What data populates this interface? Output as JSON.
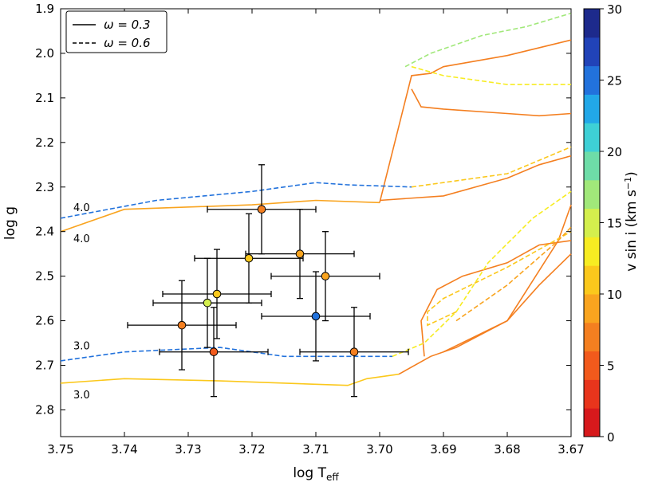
{
  "chart_data": {
    "type": "scatter",
    "xlabel": "log T",
    "xlabel_sub": "eff",
    "ylabel": "log g",
    "xlim": [
      3.75,
      3.67
    ],
    "ylim": [
      1.9,
      2.86
    ],
    "x_ticks": [
      "3.75",
      "3.74",
      "3.73",
      "3.72",
      "3.71",
      "3.70",
      "3.69",
      "3.68",
      "3.67"
    ],
    "x_tick_values": [
      3.75,
      3.74,
      3.73,
      3.72,
      3.71,
      3.7,
      3.69,
      3.68,
      3.67
    ],
    "y_ticks": [
      "1.9",
      "2.0",
      "2.1",
      "2.2",
      "2.3",
      "2.4",
      "2.5",
      "2.6",
      "2.7",
      "2.8"
    ],
    "y_tick_values": [
      1.9,
      2.0,
      2.1,
      2.2,
      2.3,
      2.4,
      2.5,
      2.6,
      2.7,
      2.8
    ],
    "legend": {
      "position": "top-left",
      "entries": [
        {
          "label": "ω = 0.3",
          "style": "solid"
        },
        {
          "label": "ω = 0.6",
          "style": "dashed"
        }
      ]
    },
    "colorbar": {
      "label": "v sin i  (km s",
      "label_sup": "−1",
      "label_close": ")",
      "min": 0,
      "max": 30,
      "ticks": [
        "0",
        "5",
        "10",
        "15",
        "20",
        "25",
        "30"
      ],
      "tick_values": [
        0,
        5,
        10,
        15,
        20,
        25,
        30
      ],
      "colors": [
        "#d7191c",
        "#e8351c",
        "#f25a1c",
        "#f47f20",
        "#f9a41f",
        "#fbc81c",
        "#f7ec22",
        "#d4ef4d",
        "#a1e87a",
        "#6edda8",
        "#3ed0d6",
        "#22a8e8",
        "#2272dc",
        "#2143b8",
        "#1d2a8c"
      ]
    },
    "annotations": [
      {
        "text": "4.0",
        "x": 3.749,
        "y": 2.345
      },
      {
        "text": "4.0",
        "x": 3.749,
        "y": 2.415
      },
      {
        "text": "3.0",
        "x": 3.749,
        "y": 2.655
      },
      {
        "text": "3.0",
        "x": 3.749,
        "y": 2.765
      }
    ],
    "points": [
      {
        "x": 3.7185,
        "y": 2.35,
        "xerr": 0.0085,
        "yerr": 0.1,
        "vsini": 7
      },
      {
        "x": 3.7125,
        "y": 2.45,
        "xerr": 0.0085,
        "yerr": 0.1,
        "vsini": 9
      },
      {
        "x": 3.7205,
        "y": 2.46,
        "xerr": 0.0085,
        "yerr": 0.1,
        "vsini": 11
      },
      {
        "x": 3.7085,
        "y": 2.5,
        "xerr": 0.0085,
        "yerr": 0.1,
        "vsini": 9
      },
      {
        "x": 3.7255,
        "y": 2.54,
        "xerr": 0.0085,
        "yerr": 0.1,
        "vsini": 11
      },
      {
        "x": 3.727,
        "y": 2.56,
        "xerr": 0.0085,
        "yerr": 0.1,
        "vsini": 15
      },
      {
        "x": 3.71,
        "y": 2.59,
        "xerr": 0.0085,
        "yerr": 0.1,
        "vsini": 24
      },
      {
        "x": 3.731,
        "y": 2.61,
        "xerr": 0.0085,
        "yerr": 0.1,
        "vsini": 7
      },
      {
        "x": 3.726,
        "y": 2.67,
        "xerr": 0.0085,
        "yerr": 0.1,
        "vsini": 5
      },
      {
        "x": 3.704,
        "y": 2.67,
        "xerr": 0.0085,
        "yerr": 0.1,
        "vsini": 7
      }
    ],
    "tracks": [
      {
        "name": "omega-0.3-logg-4.0-low",
        "style": "solid",
        "vsini": 8,
        "points": [
          [
            3.75,
            2.4
          ],
          [
            3.74,
            2.35
          ],
          [
            3.72,
            2.34
          ],
          [
            3.71,
            2.33
          ],
          [
            3.7,
            2.335
          ]
        ]
      },
      {
        "name": "omega-0.3-logg-4.0-upper",
        "style": "solid",
        "vsini": 7,
        "points": [
          [
            3.7,
            2.335
          ],
          [
            3.695,
            2.05
          ],
          [
            3.692,
            2.045
          ],
          [
            3.69,
            2.03
          ],
          [
            3.68,
            2.005
          ],
          [
            3.67,
            1.97
          ]
        ]
      },
      {
        "name": "omega-0.3-loop",
        "style": "solid",
        "vsini": 6,
        "points": [
          [
            3.695,
            2.08
          ],
          [
            3.6935,
            2.12
          ],
          [
            3.69,
            2.125
          ],
          [
            3.68,
            2.135
          ],
          [
            3.675,
            2.14
          ],
          [
            3.67,
            2.135
          ]
        ]
      },
      {
        "name": "omega-0.3-logg-4.0-tail",
        "style": "solid",
        "vsini": 6,
        "points": [
          [
            3.7,
            2.33
          ],
          [
            3.69,
            2.32
          ],
          [
            3.68,
            2.28
          ],
          [
            3.675,
            2.25
          ],
          [
            3.67,
            2.23
          ]
        ]
      },
      {
        "name": "omega-0.3-logg-3.0-low",
        "style": "solid",
        "vsini": 10,
        "points": [
          [
            3.75,
            2.74
          ],
          [
            3.74,
            2.73
          ],
          [
            3.725,
            2.735
          ],
          [
            3.705,
            2.745
          ],
          [
            3.702,
            2.73
          ],
          [
            3.697,
            2.72
          ]
        ]
      },
      {
        "name": "omega-0.3-logg-3.0-upper",
        "style": "solid",
        "vsini": 7,
        "points": [
          [
            3.697,
            2.72
          ],
          [
            3.692,
            2.68
          ],
          [
            3.688,
            2.66
          ],
          [
            3.68,
            2.6
          ],
          [
            3.675,
            2.52
          ],
          [
            3.67,
            2.45
          ]
        ]
      },
      {
        "name": "omega-0.3-logg-3.0-loop",
        "style": "solid",
        "vsini": 7,
        "points": [
          [
            3.693,
            2.68
          ],
          [
            3.6935,
            2.6
          ],
          [
            3.691,
            2.53
          ],
          [
            3.687,
            2.5
          ],
          [
            3.68,
            2.47
          ],
          [
            3.675,
            2.43
          ],
          [
            3.67,
            2.42
          ]
        ]
      },
      {
        "name": "omega-0.3-logg-3.0-tail",
        "style": "solid",
        "vsini": 6,
        "points": [
          [
            3.69,
            2.67
          ],
          [
            3.68,
            2.6
          ],
          [
            3.672,
            2.42
          ],
          [
            3.67,
            2.34
          ]
        ]
      },
      {
        "name": "omega-0.6-logg-4.0-low",
        "style": "dashed",
        "vsini": 24,
        "points": [
          [
            3.75,
            2.37
          ],
          [
            3.735,
            2.33
          ],
          [
            3.72,
            2.31
          ],
          [
            3.71,
            2.29
          ],
          [
            3.705,
            2.295
          ],
          [
            3.695,
            2.3
          ]
        ]
      },
      {
        "name": "omega-0.6-logg-4.0-upper",
        "style": "dashed",
        "vsini": 17,
        "points": [
          [
            3.696,
            2.03
          ],
          [
            3.692,
            2.0
          ],
          [
            3.688,
            1.98
          ],
          [
            3.684,
            1.96
          ],
          [
            3.677,
            1.94
          ],
          [
            3.67,
            1.91
          ]
        ]
      },
      {
        "name": "omega-0.6-logg-4.0-mid",
        "style": "dashed",
        "vsini": 13,
        "points": [
          [
            3.695,
            2.03
          ],
          [
            3.69,
            2.05
          ],
          [
            3.685,
            2.06
          ],
          [
            3.68,
            2.07
          ],
          [
            3.675,
            2.07
          ],
          [
            3.67,
            2.07
          ]
        ]
      },
      {
        "name": "omega-0.6-logg-4.0-tail",
        "style": "dashed",
        "vsini": 11,
        "points": [
          [
            3.695,
            2.3
          ],
          [
            3.685,
            2.28
          ],
          [
            3.68,
            2.27
          ],
          [
            3.675,
            2.24
          ],
          [
            3.67,
            2.21
          ]
        ]
      },
      {
        "name": "omega-0.6-logg-3.0-low",
        "style": "dashed",
        "vsini": 25,
        "points": [
          [
            3.75,
            2.69
          ],
          [
            3.74,
            2.67
          ],
          [
            3.725,
            2.66
          ],
          [
            3.715,
            2.68
          ],
          [
            3.705,
            2.68
          ],
          [
            3.698,
            2.68
          ]
        ]
      },
      {
        "name": "omega-0.6-logg-3.0-upper",
        "style": "dashed",
        "vsini": 13,
        "points": [
          [
            3.698,
            2.68
          ],
          [
            3.693,
            2.65
          ],
          [
            3.688,
            2.58
          ],
          [
            3.683,
            2.47
          ],
          [
            3.676,
            2.37
          ],
          [
            3.67,
            2.31
          ]
        ]
      },
      {
        "name": "omega-0.6-logg-3.0-loop",
        "style": "dashed",
        "vsini": 11,
        "points": [
          [
            3.688,
            2.58
          ],
          [
            3.6925,
            2.61
          ],
          [
            3.6925,
            2.58
          ],
          [
            3.69,
            2.55
          ],
          [
            3.68,
            2.48
          ],
          [
            3.675,
            2.44
          ],
          [
            3.67,
            2.4
          ]
        ]
      },
      {
        "name": "omega-0.6-logg-3.0-tail",
        "style": "dashed",
        "vsini": 8,
        "points": [
          [
            3.688,
            2.6
          ],
          [
            3.68,
            2.52
          ],
          [
            3.672,
            2.42
          ],
          [
            3.67,
            2.39
          ]
        ]
      }
    ]
  }
}
